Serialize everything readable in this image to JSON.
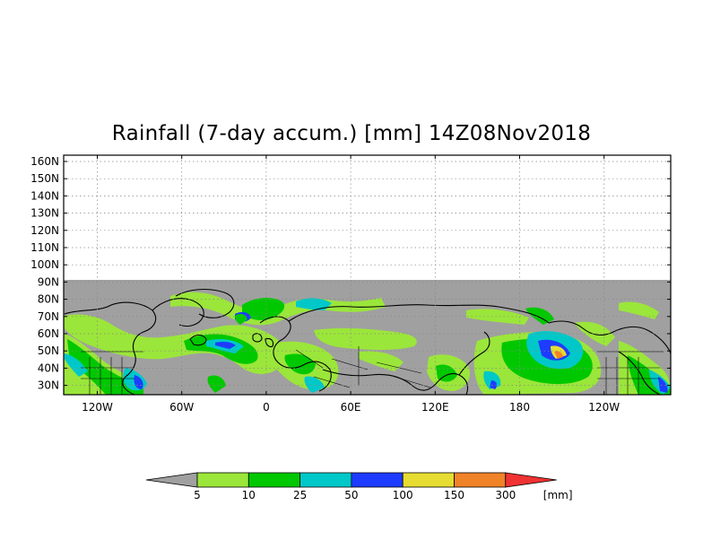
{
  "title": "Rainfall (7-day accum.) [mm] 14Z08Nov2018",
  "latitude_labels": [
    "160N",
    "150N",
    "140N",
    "130N",
    "120N",
    "110N",
    "100N",
    "90N",
    "80N",
    "70N",
    "60N",
    "50N",
    "40N",
    "30N"
  ],
  "longitude_labels": [
    "120W",
    "60W",
    "0",
    "60E",
    "120E",
    "180",
    "120W"
  ],
  "colorbar": {
    "levels": [
      "5",
      "10",
      "25",
      "50",
      "100",
      "150",
      "300"
    ],
    "unit": "[mm]",
    "colors": [
      "#a0a0a0",
      "#9be63a",
      "#00c800",
      "#00c8c8",
      "#1e3cff",
      "#e6dc32",
      "#f08228",
      "#f03232"
    ]
  },
  "colors": {
    "no_rain": "#a0a0a0",
    "empty_region": "#ffffff",
    "grid": "#888888",
    "coastline": "#000000"
  }
}
